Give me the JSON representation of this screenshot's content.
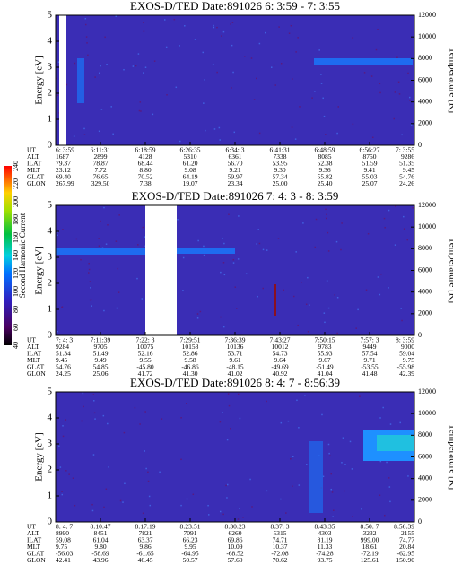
{
  "colorbar": {
    "label": "Second Harmonic Current",
    "ticks": [
      "40",
      "60",
      "80",
      "100",
      "120",
      "140",
      "160",
      "180",
      "200",
      "220",
      "240"
    ]
  },
  "panels": [
    {
      "title": "EXOS-D/TED   Date:891026  6: 3:59 - 7: 3:55",
      "y_label": "Energy [eV]",
      "y2_label": "Temperature [K]",
      "yticks": [
        "0",
        "1",
        "2",
        "3",
        "4",
        "5"
      ],
      "y2ticks": [
        "0",
        "2000",
        "4000",
        "6000",
        "8000",
        "10000",
        "12000"
      ],
      "table": {
        "row_labels": [
          "UT",
          "ALT",
          "ILAT",
          "MLT",
          "GLAT",
          "GLON"
        ],
        "rows": [
          [
            "6: 3:59",
            "6:11:31",
            "6:18:59",
            "6:26:35",
            "6:34: 3",
            "6:41:31",
            "6:48:59",
            "6:56:27",
            "7: 3:55"
          ],
          [
            "1687",
            "2899",
            "4128",
            "5310",
            "6361",
            "7338",
            "8085",
            "8750",
            "9286"
          ],
          [
            "79.37",
            "78.87",
            "68.44",
            "61.20",
            "56.70",
            "53.95",
            "52.38",
            "51.59",
            "51.35"
          ],
          [
            "23.12",
            "7.72",
            "8.80",
            "9.08",
            "9.21",
            "9.30",
            "9.36",
            "9.41",
            "9.45"
          ],
          [
            "69.40",
            "76.65",
            "70.52",
            "64.19",
            "59.97",
            "57.34",
            "55.82",
            "55.03",
            "54.76"
          ],
          [
            "267.99",
            "329.50",
            "7.38",
            "19.07",
            "23.34",
            "25.00",
            "25.40",
            "25.07",
            "24.26"
          ]
        ]
      }
    },
    {
      "title": "EXOS-D/TED   Date:891026  7: 4: 3 - 8: 3:59",
      "y_label": "Energy [eV]",
      "y2_label": "Temperature [K]",
      "yticks": [
        "0",
        "1",
        "2",
        "3",
        "4",
        "5"
      ],
      "y2ticks": [
        "0",
        "2000",
        "4000",
        "6000",
        "8000",
        "10000",
        "12000"
      ],
      "table": {
        "row_labels": [
          "UT",
          "ALT",
          "ILAT",
          "MLT",
          "GLAT",
          "GLON"
        ],
        "rows": [
          [
            "7: 4: 3",
            "7:11:39",
            "7:22: 3",
            "7:29:51",
            "7:36:39",
            "7:43:27",
            "7:50:15",
            "7:57: 3",
            "8: 3:59"
          ],
          [
            "9284",
            "9705",
            "10075",
            "10158",
            "10136",
            "10012",
            "9783",
            "9449",
            "9000"
          ],
          [
            "51.34",
            "51.49",
            "52.16",
            "52.86",
            "53.71",
            "54.73",
            "55.93",
            "57.54",
            "59.04"
          ],
          [
            "9.45",
            "9.49",
            "9.55",
            "9.58",
            "9.61",
            "9.64",
            "9.67",
            "9.71",
            "9.75"
          ],
          [
            "54.76",
            "54.85",
            "-45.80",
            "-46.86",
            "-48.15",
            "-49.69",
            "-51.49",
            "-53.55",
            "-55.98"
          ],
          [
            "24.25",
            "25.06",
            "41.72",
            "41.30",
            "41.02",
            "40.92",
            "41.04",
            "41.48",
            "42.39"
          ]
        ]
      }
    },
    {
      "title": "EXOS-D/TED   Date:891026  8: 4: 7 - 8:56:39",
      "y_label": "Energy [eV]",
      "y2_label": "Temperature [K]",
      "yticks": [
        "0",
        "1",
        "2",
        "3",
        "4",
        "5"
      ],
      "y2ticks": [
        "0",
        "2000",
        "4000",
        "6000",
        "8000",
        "10000",
        "12000"
      ],
      "table": {
        "row_labels": [
          "UT",
          "ALT",
          "ILAT",
          "MLT",
          "GLAT",
          "GLON"
        ],
        "rows": [
          [
            "8: 4: 7",
            "8:10:47",
            "8:17:19",
            "8:23:51",
            "8:30:23",
            "8:37: 3",
            "8:43:35",
            "8:50: 7",
            "8:56:39"
          ],
          [
            "8990",
            "8451",
            "7821",
            "7091",
            "6260",
            "5315",
            "4303",
            "3232",
            "2155"
          ],
          [
            "59.08",
            "61.04",
            "63.37",
            "66.23",
            "69.86",
            "74.71",
            "81.19",
            "999.00",
            "74.77"
          ],
          [
            "9.75",
            "9.80",
            "9.86",
            "9.95",
            "10.09",
            "10.37",
            "11.33",
            "18.61",
            "20.84"
          ],
          [
            "-56.03",
            "-58.69",
            "-61.65",
            "-64.95",
            "-68.52",
            "-72.08",
            "-74.28",
            "-72.19",
            "-62.95"
          ],
          [
            "42.41",
            "43.96",
            "46.45",
            "50.57",
            "57.60",
            "70.62",
            "93.75",
            "125.61",
            "150.90"
          ]
        ]
      }
    }
  ]
}
